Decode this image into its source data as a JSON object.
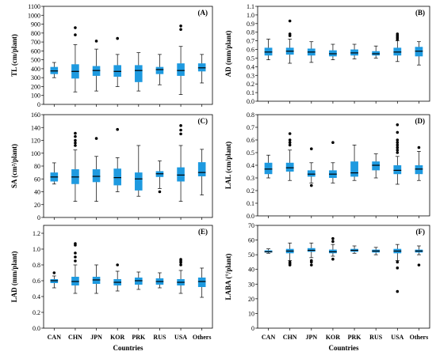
{
  "figure": {
    "background": "#ffffff",
    "box_color": "#1e9ae0",
    "median_color": "#000000",
    "outlier_color": "#000000"
  },
  "chart_data": [
    {
      "type": "box",
      "panel_label": "(A)",
      "ylabel": "TL (cm/plant)",
      "xlabel": "",
      "ylim": [
        0,
        1100
      ],
      "yticks": [
        0,
        100,
        200,
        300,
        400,
        500,
        600,
        700,
        800,
        900,
        1000,
        1100
      ],
      "ytick_decimals": 0,
      "categories": [
        "CAN",
        "CHN",
        "JPN",
        "KOR",
        "PRK",
        "RUS",
        "USA",
        "Others"
      ],
      "show_categories": false,
      "boxes": [
        {
          "category": "CAN",
          "whisker_low": 300,
          "q1": 340,
          "median": 375,
          "q3": 420,
          "whisker_high": 470,
          "outliers": []
        },
        {
          "category": "CHN",
          "whisker_low": 140,
          "q1": 290,
          "median": 370,
          "q3": 450,
          "whisker_high": 670,
          "outliers": [
            780,
            860
          ]
        },
        {
          "category": "JPN",
          "whisker_low": 150,
          "q1": 320,
          "median": 380,
          "q3": 430,
          "whisker_high": 620,
          "outliers": [
            710
          ]
        },
        {
          "category": "KOR",
          "whisker_low": 200,
          "q1": 310,
          "median": 370,
          "q3": 440,
          "whisker_high": 560,
          "outliers": [
            740
          ]
        },
        {
          "category": "PRK",
          "whisker_low": 150,
          "q1": 250,
          "median": 380,
          "q3": 440,
          "whisker_high": 580,
          "outliers": []
        },
        {
          "category": "RUS",
          "whisker_low": 220,
          "q1": 340,
          "median": 390,
          "q3": 420,
          "whisker_high": 560,
          "outliers": []
        },
        {
          "category": "USA",
          "whisker_low": 110,
          "q1": 320,
          "median": 380,
          "q3": 460,
          "whisker_high": 650,
          "outliers": [
            840,
            880
          ]
        },
        {
          "category": "Others",
          "whisker_low": 240,
          "q1": 370,
          "median": 410,
          "q3": 460,
          "whisker_high": 560,
          "outliers": []
        }
      ]
    },
    {
      "type": "box",
      "panel_label": "(B)",
      "ylabel": "AD (mm/plant)",
      "xlabel": "",
      "ylim": [
        0,
        1.1
      ],
      "yticks": [
        0,
        0.1,
        0.2,
        0.3,
        0.4,
        0.5,
        0.6,
        0.7,
        0.8,
        0.9,
        1.0,
        1.1
      ],
      "ytick_decimals": 1,
      "categories": [
        "CAN",
        "CHN",
        "JPN",
        "KOR",
        "PRK",
        "RUS",
        "USA",
        "Others"
      ],
      "show_categories": false,
      "boxes": [
        {
          "category": "CAN",
          "whisker_low": 0.48,
          "q1": 0.53,
          "median": 0.57,
          "q3": 0.62,
          "whisker_high": 0.72,
          "outliers": []
        },
        {
          "category": "CHN",
          "whisker_low": 0.44,
          "q1": 0.54,
          "median": 0.58,
          "q3": 0.62,
          "whisker_high": 0.72,
          "outliers": [
            0.76,
            0.78,
            0.93
          ]
        },
        {
          "category": "JPN",
          "whisker_low": 0.45,
          "q1": 0.53,
          "median": 0.57,
          "q3": 0.61,
          "whisker_high": 0.69,
          "outliers": []
        },
        {
          "category": "KOR",
          "whisker_low": 0.48,
          "q1": 0.52,
          "median": 0.55,
          "q3": 0.59,
          "whisker_high": 0.66,
          "outliers": []
        },
        {
          "category": "PRK",
          "whisker_low": 0.49,
          "q1": 0.53,
          "median": 0.56,
          "q3": 0.6,
          "whisker_high": 0.66,
          "outliers": []
        },
        {
          "category": "RUS",
          "whisker_low": 0.5,
          "q1": 0.53,
          "median": 0.55,
          "q3": 0.58,
          "whisker_high": 0.64,
          "outliers": []
        },
        {
          "category": "USA",
          "whisker_low": 0.46,
          "q1": 0.53,
          "median": 0.57,
          "q3": 0.62,
          "whisker_high": 0.7,
          "outliers": [
            0.72,
            0.74,
            0.76,
            0.78
          ]
        },
        {
          "category": "Others",
          "whisker_low": 0.42,
          "q1": 0.52,
          "median": 0.58,
          "q3": 0.63,
          "whisker_high": 0.69,
          "outliers": []
        }
      ]
    },
    {
      "type": "box",
      "panel_label": "(C)",
      "ylabel": "SA (cm²/plant)",
      "xlabel": "",
      "ylim": [
        0,
        160
      ],
      "yticks": [
        0,
        20,
        40,
        60,
        80,
        100,
        120,
        140,
        160
      ],
      "ytick_decimals": 0,
      "categories": [
        "CAN",
        "CHN",
        "JPN",
        "KOR",
        "PRK",
        "RUS",
        "USA",
        "Others"
      ],
      "show_categories": false,
      "boxes": [
        {
          "category": "CAN",
          "whisker_low": 52,
          "q1": 56,
          "median": 63,
          "q3": 70,
          "whisker_high": 85,
          "outliers": []
        },
        {
          "category": "CHN",
          "whisker_low": 25,
          "q1": 52,
          "median": 63,
          "q3": 75,
          "whisker_high": 105,
          "outliers": [
            112,
            116,
            120,
            126,
            131
          ]
        },
        {
          "category": "JPN",
          "whisker_low": 25,
          "q1": 55,
          "median": 64,
          "q3": 75,
          "whisker_high": 95,
          "outliers": [
            123
          ]
        },
        {
          "category": "KOR",
          "whisker_low": 40,
          "q1": 50,
          "median": 62,
          "q3": 76,
          "whisker_high": 93,
          "outliers": [
            137
          ]
        },
        {
          "category": "PRK",
          "whisker_low": 33,
          "q1": 42,
          "median": 60,
          "q3": 70,
          "whisker_high": 112,
          "outliers": []
        },
        {
          "category": "RUS",
          "whisker_low": 45,
          "q1": 63,
          "median": 68,
          "q3": 72,
          "whisker_high": 88,
          "outliers": [
            40
          ]
        },
        {
          "category": "USA",
          "whisker_low": 25,
          "q1": 56,
          "median": 66,
          "q3": 78,
          "whisker_high": 112,
          "outliers": [
            130,
            136,
            143
          ]
        },
        {
          "category": "Others",
          "whisker_low": 35,
          "q1": 64,
          "median": 70,
          "q3": 86,
          "whisker_high": 106,
          "outliers": []
        }
      ]
    },
    {
      "type": "box",
      "panel_label": "(D)",
      "ylabel": "LAL (cm/plant)",
      "xlabel": "",
      "ylim": [
        0,
        0.8
      ],
      "yticks": [
        0,
        0.1,
        0.2,
        0.3,
        0.4,
        0.5,
        0.6,
        0.7,
        0.8
      ],
      "ytick_decimals": 1,
      "categories": [
        "CAN",
        "CHN",
        "JPN",
        "KOR",
        "PRK",
        "RUS",
        "USA",
        "Others"
      ],
      "show_categories": false,
      "boxes": [
        {
          "category": "CAN",
          "whisker_low": 0.3,
          "q1": 0.33,
          "median": 0.37,
          "q3": 0.42,
          "whisker_high": 0.48,
          "outliers": []
        },
        {
          "category": "CHN",
          "whisker_low": 0.28,
          "q1": 0.35,
          "median": 0.38,
          "q3": 0.42,
          "whisker_high": 0.52,
          "outliers": [
            0.56,
            0.58,
            0.6,
            0.65
          ]
        },
        {
          "category": "JPN",
          "whisker_low": 0.26,
          "q1": 0.31,
          "median": 0.33,
          "q3": 0.36,
          "whisker_high": 0.42,
          "outliers": [
            0.24,
            0.53
          ]
        },
        {
          "category": "KOR",
          "whisker_low": 0.26,
          "q1": 0.3,
          "median": 0.33,
          "q3": 0.36,
          "whisker_high": 0.42,
          "outliers": [
            0.58
          ]
        },
        {
          "category": "PRK",
          "whisker_low": 0.28,
          "q1": 0.31,
          "median": 0.34,
          "q3": 0.43,
          "whisker_high": 0.56,
          "outliers": []
        },
        {
          "category": "RUS",
          "whisker_low": 0.3,
          "q1": 0.36,
          "median": 0.4,
          "q3": 0.43,
          "whisker_high": 0.49,
          "outliers": []
        },
        {
          "category": "USA",
          "whisker_low": 0.25,
          "q1": 0.33,
          "median": 0.36,
          "q3": 0.4,
          "whisker_high": 0.47,
          "outliers": [
            0.5,
            0.52,
            0.54,
            0.56,
            0.58,
            0.6,
            0.66,
            0.72
          ]
        },
        {
          "category": "Others",
          "whisker_low": 0.28,
          "q1": 0.33,
          "median": 0.37,
          "q3": 0.4,
          "whisker_high": 0.51,
          "outliers": [
            0.54
          ]
        }
      ]
    },
    {
      "type": "box",
      "panel_label": "(E)",
      "ylabel": "LAD (mm/plant)",
      "xlabel": "Countries",
      "ylim": [
        0,
        1.3
      ],
      "yticks": [
        0,
        0.2,
        0.4,
        0.6,
        0.8,
        1.0,
        1.2
      ],
      "ytick_decimals": 1,
      "categories": [
        "CAN",
        "CHN",
        "JPN",
        "KOR",
        "PRK",
        "RUS",
        "USA",
        "Others"
      ],
      "show_categories": true,
      "boxes": [
        {
          "category": "CAN",
          "whisker_low": 0.51,
          "q1": 0.57,
          "median": 0.6,
          "q3": 0.62,
          "whisker_high": 0.66,
          "outliers": [
            0.7
          ]
        },
        {
          "category": "CHN",
          "whisker_low": 0.44,
          "q1": 0.54,
          "median": 0.59,
          "q3": 0.65,
          "whisker_high": 0.8,
          "outliers": [
            0.85,
            0.9,
            0.95,
            1.05,
            1.07
          ]
        },
        {
          "category": "JPN",
          "whisker_low": 0.44,
          "q1": 0.56,
          "median": 0.61,
          "q3": 0.65,
          "whisker_high": 0.8,
          "outliers": []
        },
        {
          "category": "KOR",
          "whisker_low": 0.47,
          "q1": 0.54,
          "median": 0.58,
          "q3": 0.62,
          "whisker_high": 0.72,
          "outliers": [
            0.8
          ]
        },
        {
          "category": "PRK",
          "whisker_low": 0.49,
          "q1": 0.55,
          "median": 0.6,
          "q3": 0.64,
          "whisker_high": 0.71,
          "outliers": []
        },
        {
          "category": "RUS",
          "whisker_low": 0.51,
          "q1": 0.55,
          "median": 0.59,
          "q3": 0.63,
          "whisker_high": 0.7,
          "outliers": []
        },
        {
          "category": "USA",
          "whisker_low": 0.44,
          "q1": 0.54,
          "median": 0.58,
          "q3": 0.62,
          "whisker_high": 0.73,
          "outliers": [
            0.8,
            0.83,
            0.85,
            0.87
          ]
        },
        {
          "category": "Others",
          "whisker_low": 0.39,
          "q1": 0.52,
          "median": 0.59,
          "q3": 0.64,
          "whisker_high": 0.76,
          "outliers": []
        }
      ]
    },
    {
      "type": "box",
      "panel_label": "(F)",
      "ylabel": "LABA (°/plant)",
      "xlabel": "Countries",
      "ylim": [
        0,
        70
      ],
      "yticks": [
        0,
        10,
        20,
        30,
        40,
        50,
        60,
        70
      ],
      "ytick_decimals": 0,
      "categories": [
        "CAN",
        "CHN",
        "JPN",
        "KOR",
        "PRK",
        "RUS",
        "USA",
        "Others"
      ],
      "show_categories": true,
      "boxes": [
        {
          "category": "CAN",
          "whisker_low": 51,
          "q1": 51.5,
          "median": 52,
          "q3": 53,
          "whisker_high": 54,
          "outliers": []
        },
        {
          "category": "CHN",
          "whisker_low": 46,
          "q1": 51,
          "median": 52.5,
          "q3": 54,
          "whisker_high": 58,
          "outliers": [
            43,
            44,
            45
          ]
        },
        {
          "category": "JPN",
          "whisker_low": 48,
          "q1": 52,
          "median": 53,
          "q3": 54.5,
          "whisker_high": 58,
          "outliers": [
            43,
            45,
            46
          ]
        },
        {
          "category": "KOR",
          "whisker_low": 49,
          "q1": 51,
          "median": 52,
          "q3": 53.5,
          "whisker_high": 57,
          "outliers": [
            47,
            59,
            61
          ]
        },
        {
          "category": "PRK",
          "whisker_low": 51,
          "q1": 52,
          "median": 53,
          "q3": 54,
          "whisker_high": 56,
          "outliers": []
        },
        {
          "category": "RUS",
          "whisker_low": 50,
          "q1": 51.5,
          "median": 52.5,
          "q3": 53.5,
          "whisker_high": 55,
          "outliers": []
        },
        {
          "category": "USA",
          "whisker_low": 46,
          "q1": 51,
          "median": 52.5,
          "q3": 54,
          "whisker_high": 57,
          "outliers": [
            25,
            41,
            45
          ]
        },
        {
          "category": "Others",
          "whisker_low": 50,
          "q1": 51.5,
          "median": 52.5,
          "q3": 53.5,
          "whisker_high": 56,
          "outliers": [
            43
          ]
        }
      ]
    }
  ]
}
